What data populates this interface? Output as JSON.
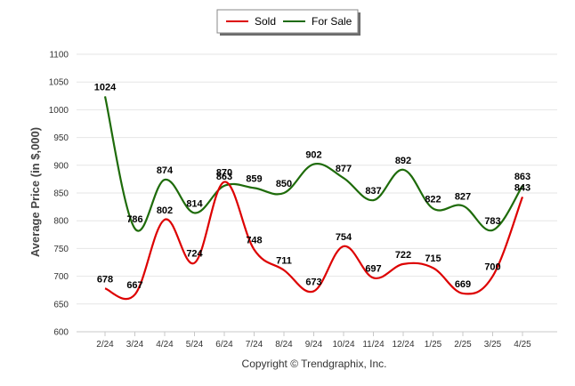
{
  "chart_data": {
    "type": "line",
    "title": "",
    "xlabel": "",
    "ylabel": "Average Price (in $,000)",
    "categories": [
      "2/24",
      "3/24",
      "4/24",
      "5/24",
      "6/24",
      "7/24",
      "8/24",
      "9/24",
      "10/24",
      "11/24",
      "12/24",
      "1/25",
      "2/25",
      "3/25",
      "4/25"
    ],
    "ylim": [
      600,
      1100
    ],
    "yticks": [
      600,
      650,
      700,
      750,
      800,
      850,
      900,
      950,
      1000,
      1050,
      1100
    ],
    "grid": true,
    "legend_position": "top-center",
    "series": [
      {
        "name": "Sold",
        "color": "#dd0000",
        "values": [
          678,
          667,
          802,
          724,
          870,
          748,
          711,
          673,
          754,
          697,
          722,
          715,
          669,
          700,
          843
        ]
      },
      {
        "name": "For Sale",
        "color": "#1e6b0a",
        "values": [
          1024,
          786,
          874,
          814,
          863,
          859,
          850,
          902,
          877,
          837,
          892,
          822,
          827,
          783,
          863
        ]
      }
    ],
    "footer": "Copyright © Trendgraphix, Inc."
  }
}
